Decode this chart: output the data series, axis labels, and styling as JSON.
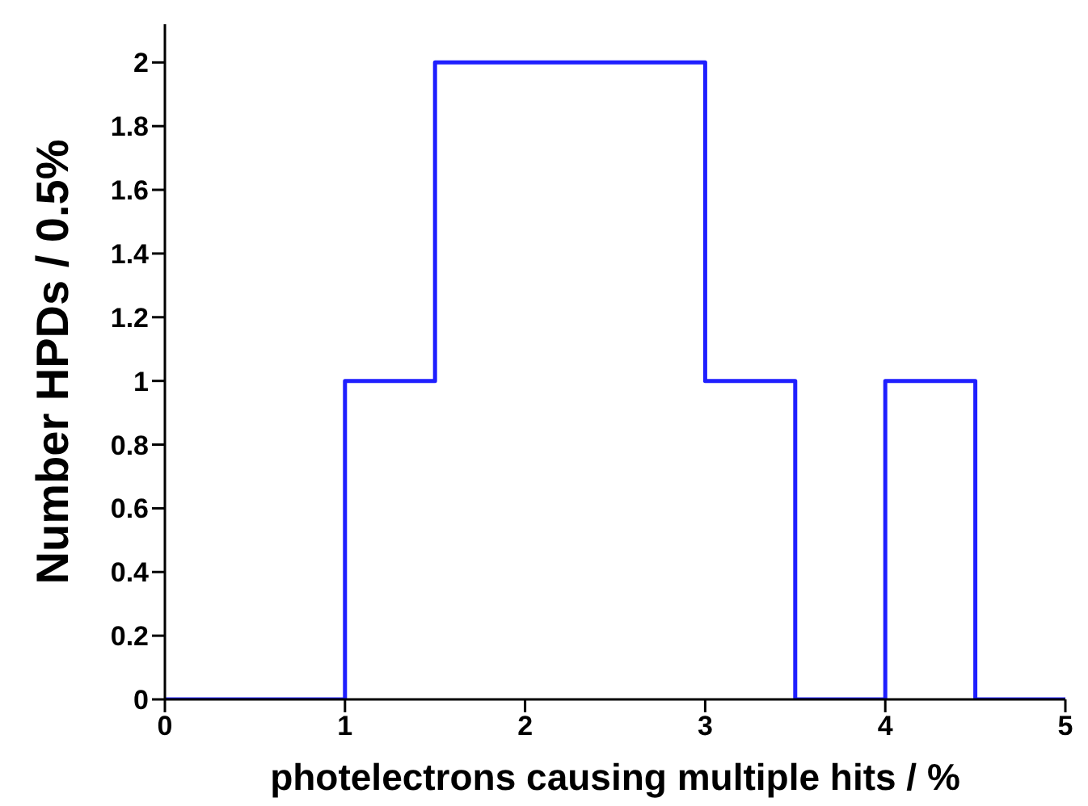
{
  "chart_data": {
    "type": "histogram",
    "xlabel": "photelectrons causing multiple hits / %",
    "ylabel": "Number HPDs / 0.5%",
    "bins": [
      0,
      0.5,
      1,
      1.5,
      2,
      2.5,
      3,
      3.5,
      4,
      4.5,
      5
    ],
    "values": [
      0,
      0,
      1,
      2,
      2,
      2,
      1,
      0,
      1,
      0
    ],
    "color": "#1f1fff",
    "xlim": [
      0,
      5
    ],
    "xticks": [
      0,
      1,
      2,
      3,
      4,
      5
    ],
    "ylim": [
      0,
      2.12
    ],
    "yticks": [
      0,
      0.2,
      0.4,
      0.6,
      0.8,
      1,
      1.2,
      1.4,
      1.6,
      1.8,
      2
    ],
    "grid": false,
    "legend": false
  }
}
